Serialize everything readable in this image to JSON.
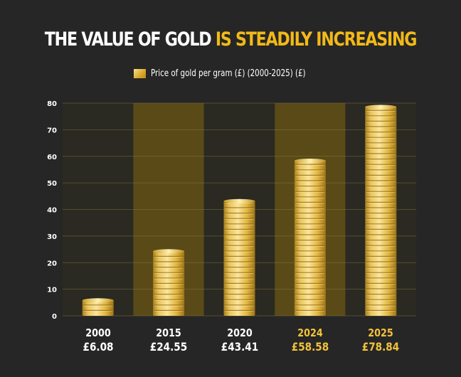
{
  "title": {
    "part1": "THE VALUE OF GOLD",
    "part2": "IS STEADILY INCREASING"
  },
  "colors": {
    "background": "#262626",
    "title_white": "#ffffff",
    "title_gold": "#f2b918",
    "gold": "#e0b33a"
  },
  "chart_data": {
    "type": "bar",
    "title": "THE VALUE OF GOLD IS STEADILY INCREASING",
    "categories": [
      "2000",
      "2015",
      "2020",
      "2024",
      "2025"
    ],
    "category_labels": [
      "£6.08",
      "£24.55",
      "£43.41",
      "£58.58",
      "£78.84"
    ],
    "series": [
      {
        "name": "Price of gold per gram (£) (2000-2025) (£)",
        "values": [
          6.08,
          24.55,
          43.41,
          58.58,
          78.84
        ]
      }
    ],
    "ylim": [
      0,
      80
    ],
    "yticks": [
      0,
      10,
      20,
      30,
      40,
      50,
      60,
      70,
      80
    ],
    "grid": true,
    "legend_position": "top-center"
  }
}
